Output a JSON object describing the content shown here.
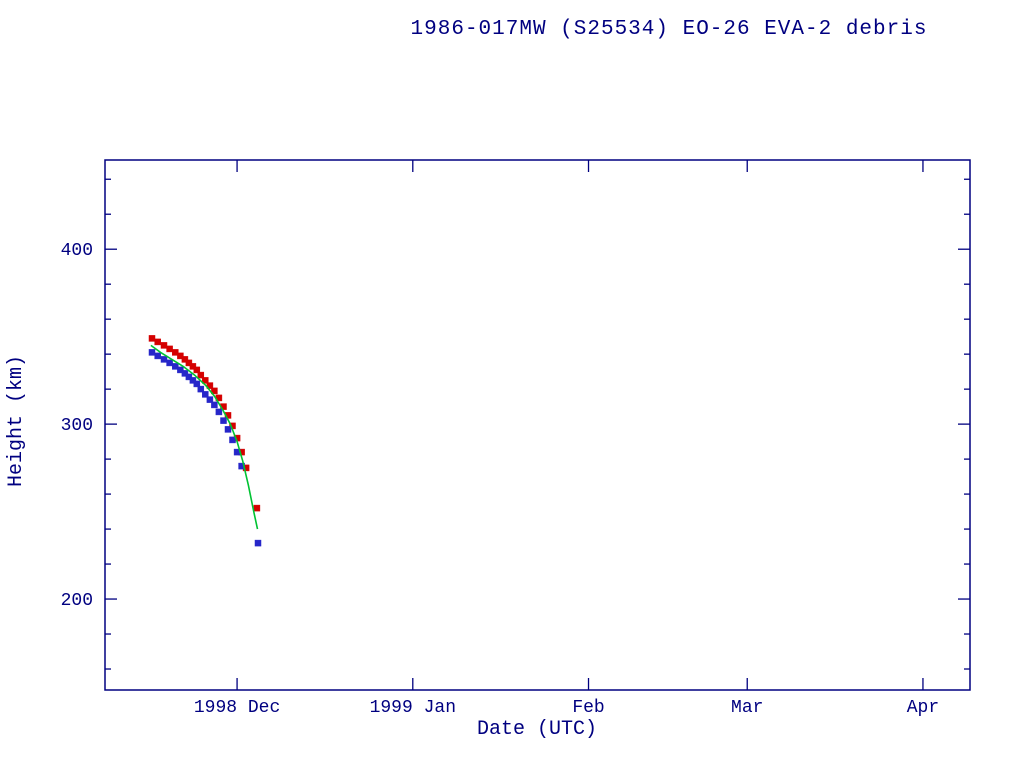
{
  "page": {
    "background": "#ffffff"
  },
  "style": {
    "text_color": "#000080",
    "axis_color": "#000080",
    "apogee_color": "#d40000",
    "perigee_color": "#2626c9",
    "fit_line_color": "#00c232"
  },
  "chart_data": {
    "type": "scatter",
    "title": "1986-017MW (S25534) EO-26 EVA-2 debris",
    "xlabel": "Date (UTC)",
    "ylabel": "Height (km)",
    "x_axis_unit": "days since 1998-11-01",
    "xlim": [
      6.7,
      159.3
    ],
    "ylim": [
      148,
      451
    ],
    "grid": false,
    "legend": "none",
    "x_ticks": [
      {
        "value": 30,
        "label": "1998 Dec"
      },
      {
        "value": 61,
        "label": "1999 Jan"
      },
      {
        "value": 92,
        "label": "Feb"
      },
      {
        "value": 120,
        "label": "Mar"
      },
      {
        "value": 151,
        "label": "Apr"
      }
    ],
    "y_ticks": [
      {
        "value": 200,
        "label": "200"
      },
      {
        "value": 300,
        "label": "300"
      },
      {
        "value": 400,
        "label": "400"
      }
    ],
    "y_minor_step": 20,
    "series": [
      {
        "name": "apogee-height",
        "kind": "scatter",
        "marker": "square",
        "color_key": "apogee_color",
        "points": [
          [
            15.0,
            349
          ],
          [
            16.0,
            347
          ],
          [
            17.1,
            345
          ],
          [
            18.1,
            343
          ],
          [
            19.1,
            341
          ],
          [
            20.0,
            339
          ],
          [
            20.8,
            337
          ],
          [
            21.5,
            335
          ],
          [
            22.2,
            333
          ],
          [
            22.9,
            331
          ],
          [
            23.6,
            328
          ],
          [
            24.4,
            325
          ],
          [
            25.2,
            322
          ],
          [
            26.0,
            319
          ],
          [
            26.8,
            315
          ],
          [
            27.6,
            310
          ],
          [
            28.4,
            305
          ],
          [
            29.2,
            299
          ],
          [
            30.0,
            292
          ],
          [
            30.8,
            284
          ],
          [
            31.6,
            275
          ],
          [
            33.5,
            252
          ]
        ]
      },
      {
        "name": "perigee-height",
        "kind": "scatter",
        "marker": "square",
        "color_key": "perigee_color",
        "points": [
          [
            15.0,
            341
          ],
          [
            16.0,
            339
          ],
          [
            17.1,
            337
          ],
          [
            18.1,
            335
          ],
          [
            19.1,
            333
          ],
          [
            20.0,
            331
          ],
          [
            20.8,
            329
          ],
          [
            21.5,
            327
          ],
          [
            22.2,
            325
          ],
          [
            22.9,
            323
          ],
          [
            23.6,
            320
          ],
          [
            24.4,
            317
          ],
          [
            25.2,
            314
          ],
          [
            26.0,
            311
          ],
          [
            26.8,
            307
          ],
          [
            27.6,
            302
          ],
          [
            28.4,
            297
          ],
          [
            29.2,
            291
          ],
          [
            30.0,
            284
          ],
          [
            30.8,
            276
          ],
          [
            33.7,
            232
          ]
        ]
      },
      {
        "name": "mean-height-fit",
        "kind": "line",
        "color_key": "fit_line_color",
        "points": [
          [
            14.8,
            345
          ],
          [
            16.5,
            341
          ],
          [
            18.5,
            337
          ],
          [
            20.5,
            333
          ],
          [
            22.5,
            328
          ],
          [
            24.5,
            322
          ],
          [
            26.0,
            316
          ],
          [
            27.5,
            308
          ],
          [
            28.8,
            300
          ],
          [
            30.0,
            290
          ],
          [
            31.0,
            279
          ],
          [
            32.0,
            265
          ],
          [
            33.0,
            249
          ],
          [
            33.6,
            240
          ]
        ]
      }
    ]
  }
}
